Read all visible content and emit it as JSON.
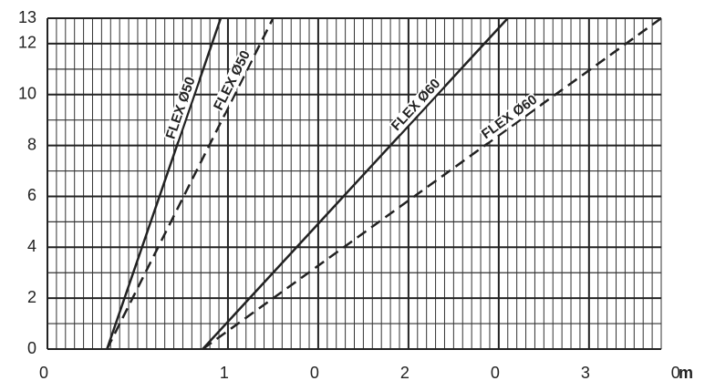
{
  "chart_data": {
    "type": "line",
    "x_label": "m",
    "xlim": [
      0,
      3.4
    ],
    "ylim": [
      0,
      13
    ],
    "xticks": [
      0,
      1,
      {
        "value": 1.5,
        "label": "0"
      },
      2,
      {
        "value": 2.5,
        "label": "0"
      },
      3,
      {
        "value": 3.5,
        "label": "0"
      }
    ],
    "yticks": [
      0,
      2,
      4,
      6,
      8,
      10,
      12,
      13
    ],
    "grid": true,
    "x_minor_step": 0.05,
    "y_minor_step": 1,
    "series": [
      {
        "name": "FLEX Ø50",
        "color": "#222222",
        "dashed": false,
        "x": [
          0.33,
          0.96
        ],
        "values": [
          0,
          13
        ]
      },
      {
        "name": "FLEX Ø50",
        "color": "#222222",
        "dashed": true,
        "x": [
          0.33,
          1.25
        ],
        "values": [
          0,
          13
        ]
      },
      {
        "name": "FLEX Ø60",
        "color": "#222222",
        "dashed": false,
        "x": [
          0.86,
          2.55
        ],
        "values": [
          0,
          13
        ]
      },
      {
        "name": "FLEX Ø60",
        "color": "#222222",
        "dashed": true,
        "x": [
          0.86,
          3.4
        ],
        "values": [
          0,
          13
        ]
      }
    ]
  }
}
